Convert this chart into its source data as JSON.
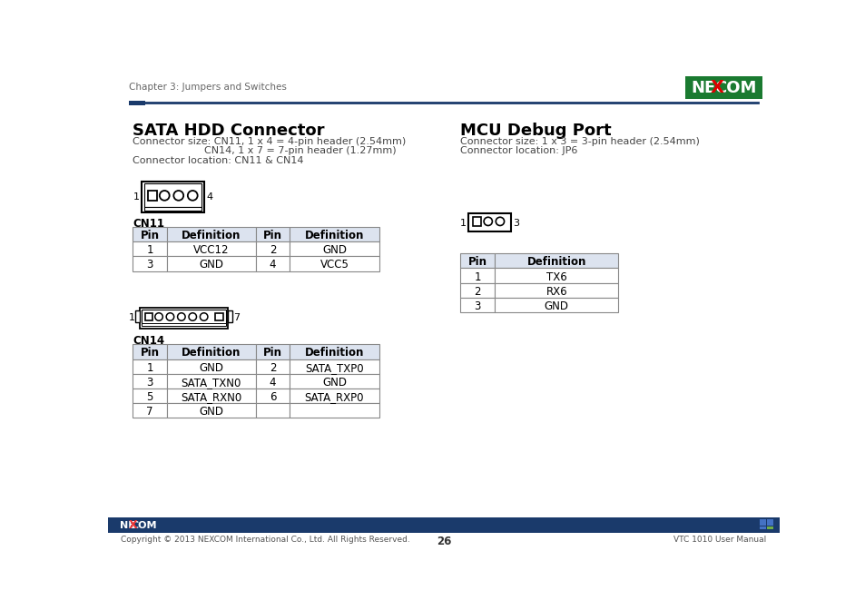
{
  "bg_color": "#ffffff",
  "header_line_color": "#1a3a6b",
  "header_square_color": "#1a3a6b",
  "header_text": "Chapter 3: Jumpers and Switches",
  "header_text_color": "#666666",
  "section1_title": "SATA HDD Connector",
  "section1_desc1": "Connector size: CN11, 1 x 4 = 4-pin header (2.54mm)",
  "section1_desc2": "                    CN14, 1 x 7 = 7-pin header (1.27mm)",
  "section1_desc3": "Connector location: CN11 & CN14",
  "section2_title": "MCU Debug Port",
  "section2_desc1": "Connector size: 1 x 3 = 3-pin header (2.54mm)",
  "section2_desc2": "Connector location: JP6",
  "cn11_label": "CN11",
  "cn11_headers": [
    "Pin",
    "Definition",
    "Pin",
    "Definition"
  ],
  "cn11_rows": [
    [
      "1",
      "VCC12",
      "2",
      "GND"
    ],
    [
      "3",
      "GND",
      "4",
      "VCC5"
    ]
  ],
  "cn14_label": "CN14",
  "cn14_headers": [
    "Pin",
    "Definition",
    "Pin",
    "Definition"
  ],
  "cn14_rows": [
    [
      "1",
      "GND",
      "2",
      "SATA_TXP0"
    ],
    [
      "3",
      "SATA_TXN0",
      "4",
      "GND"
    ],
    [
      "5",
      "SATA_RXN0",
      "6",
      "SATA_RXP0"
    ],
    [
      "7",
      "GND",
      "",
      ""
    ]
  ],
  "jp6_headers": [
    "Pin",
    "Definition"
  ],
  "jp6_rows": [
    [
      "1",
      "TX6"
    ],
    [
      "2",
      "RX6"
    ],
    [
      "3",
      "GND"
    ]
  ],
  "footer_bar_color": "#1a3a6b",
  "footer_copyright": "Copyright © 2013 NEXCOM International Co., Ltd. All Rights Reserved.",
  "footer_page": "26",
  "footer_right": "VTC 1010 User Manual",
  "table_header_bg": "#dce3ef",
  "table_border_color": "#888888",
  "nexcom_green": "#1a7a30"
}
